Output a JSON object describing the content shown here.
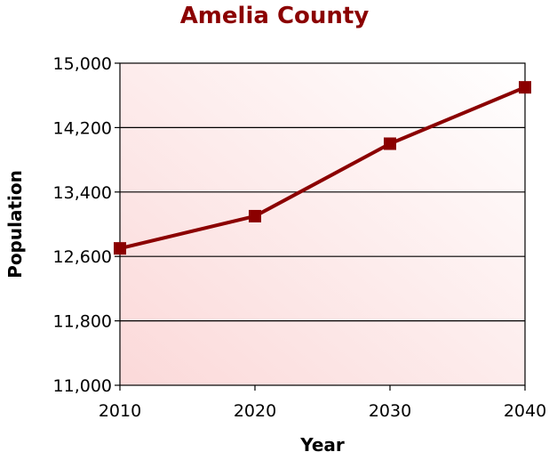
{
  "chart_data": {
    "type": "line",
    "title": "Amelia County",
    "xlabel": "Year",
    "ylabel": "Population",
    "categories": [
      "2010",
      "2020",
      "2030",
      "2040"
    ],
    "y_tick_labels": [
      "15,000",
      "14,200",
      "13,400",
      "12,600",
      "11,800",
      "11,000"
    ],
    "y_ticks": [
      15000,
      14200,
      13400,
      12600,
      11800,
      11000
    ],
    "ylim": [
      11000,
      15000
    ],
    "grid": true,
    "series": [
      {
        "values": [
          12700,
          13100,
          14000,
          14700
        ],
        "color": "#8b0000"
      }
    ],
    "colors": {
      "title": "#8b0000",
      "line": "#8b0000",
      "background_gradient": [
        "#fbd9d9",
        "#ffffff"
      ]
    }
  }
}
